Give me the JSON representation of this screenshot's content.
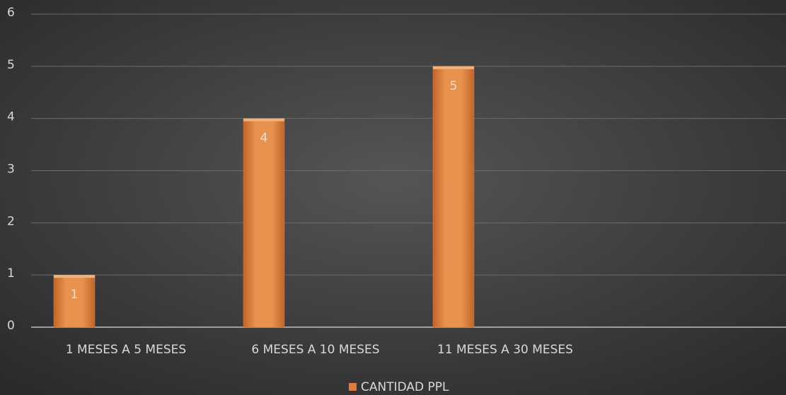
{
  "chart_data": {
    "type": "bar",
    "categories": [
      "1 MESES A 5 MESES",
      "6 MESES A 10 MESES",
      "11 MESES A 30 MESES"
    ],
    "series": [
      {
        "name": "CANTIDAD PPL",
        "color": "#e07b39",
        "values": [
          1,
          4,
          5
        ]
      }
    ],
    "ylim": [
      0,
      6
    ],
    "yticks": [
      0,
      1,
      2,
      3,
      4,
      5,
      6
    ],
    "grid": true,
    "legend": "bottom",
    "data_labels": true
  }
}
